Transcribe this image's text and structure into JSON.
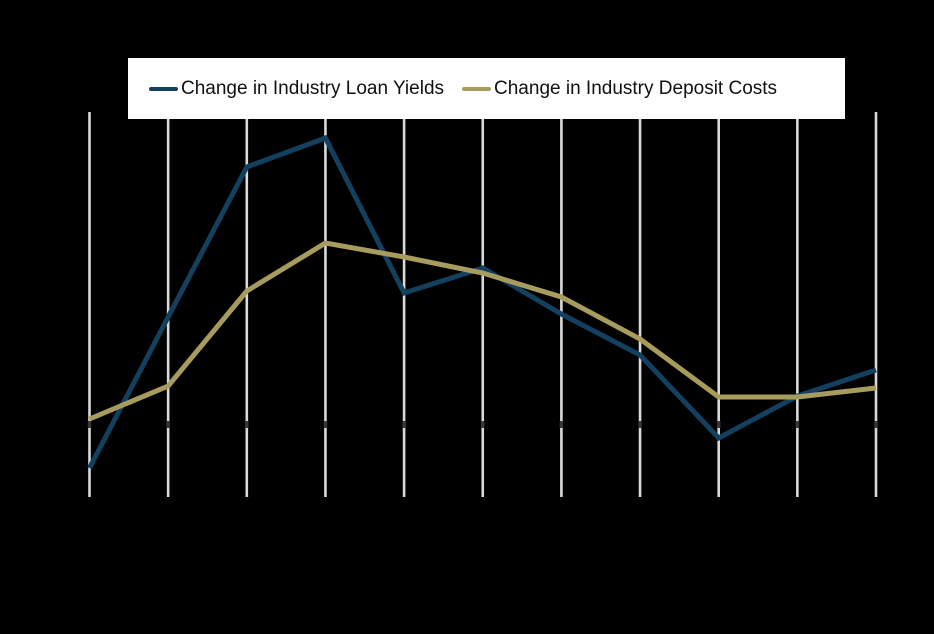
{
  "colors": {
    "background": "#000000",
    "gridline": "#d9d9d9",
    "axis_tick": "#383838",
    "legend_background": "#ffffff",
    "legend_text": "#111111",
    "loan_yields_line": "#14405f",
    "deposit_costs_line": "#a89b5e"
  },
  "legend": {
    "items": [
      {
        "label": "Change in Industry Loan Yields",
        "color": "#14405f"
      },
      {
        "label": "Change in Industry Deposit Costs",
        "color": "#a89b5e"
      }
    ]
  },
  "chart_data": {
    "type": "line",
    "title": "",
    "xlabel": "",
    "ylabel": "",
    "axis_tick_labels_visible": false,
    "legend_position": "top",
    "grid": "vertical-only",
    "baseline": 0,
    "value_unit": "pixels-above-baseline (no numeric axis labels visible in image)",
    "ylim": [
      -76,
      309
    ],
    "categories": [
      "",
      "",
      "",
      "",
      "",
      "",
      "",
      "",
      "",
      "",
      ""
    ],
    "series": [
      {
        "name": "Change in Industry Loan Yields",
        "slug": "loan-yields-line",
        "color": "#14405f",
        "values": [
          -47,
          104,
          254,
          283,
          128,
          153,
          107,
          66,
          -17,
          25,
          51
        ]
      },
      {
        "name": "Change in Industry Deposit Costs",
        "slug": "deposit-costs-line",
        "color": "#a89b5e",
        "values": [
          2,
          35,
          130,
          178,
          164,
          148,
          124,
          82,
          24,
          24,
          33
        ]
      }
    ]
  }
}
